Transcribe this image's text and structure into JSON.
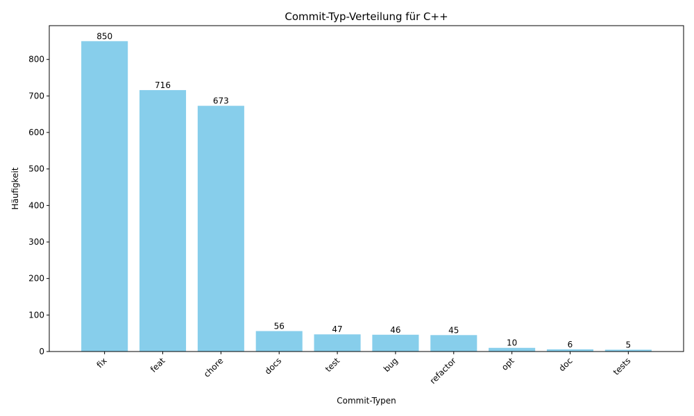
{
  "chart_data": {
    "type": "bar",
    "title": "Commit-Typ-Verteilung für C++",
    "xlabel": "Commit-Typen",
    "ylabel": "Häufigkeit",
    "categories": [
      "fix",
      "feat",
      "chore",
      "docs",
      "test",
      "bug",
      "refactor",
      "opt",
      "doc",
      "tests"
    ],
    "values": [
      850,
      716,
      673,
      56,
      47,
      46,
      45,
      10,
      6,
      5
    ],
    "ylim": [
      0,
      892.5
    ],
    "yticks": [
      0,
      100,
      200,
      300,
      400,
      500,
      600,
      700,
      800
    ],
    "bar_color": "#87ceeb",
    "grid": false,
    "data_labels": true,
    "x_tick_rotation": "45° right-aligned"
  }
}
